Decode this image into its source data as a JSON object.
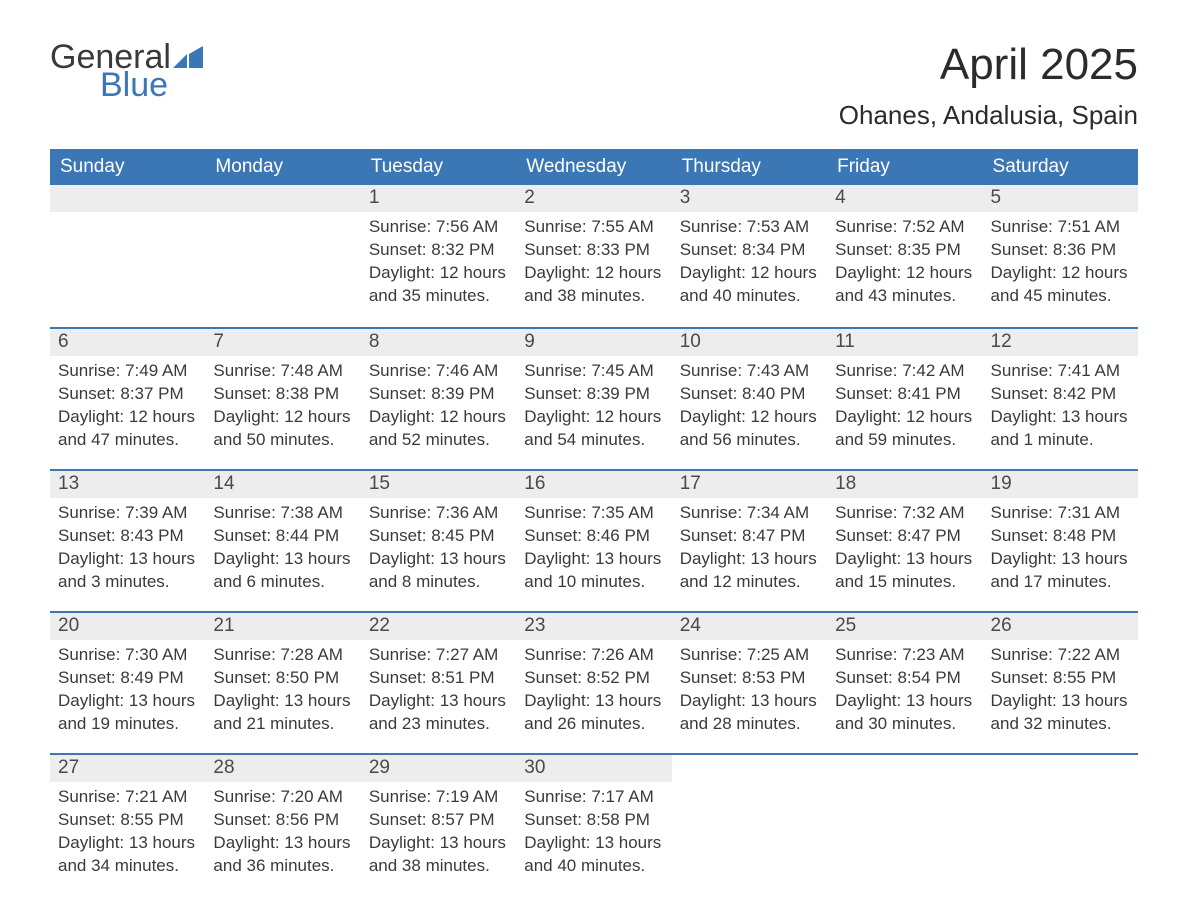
{
  "brand": {
    "word1": "General",
    "word2": "Blue",
    "word1_color": "#3a3a3a",
    "word2_color": "#3b76b5",
    "flag_color": "#3b76b5"
  },
  "title": "April 2025",
  "location": "Ohanes, Andalusia, Spain",
  "colors": {
    "header_bg": "#3b76b5",
    "header_text": "#ffffff",
    "date_bg": "#ededed",
    "row_border": "#3b76b5",
    "body_text": "#3a3a3a",
    "background": "#ffffff"
  },
  "typography": {
    "title_fontsize": 44,
    "location_fontsize": 26,
    "header_fontsize": 19,
    "cell_fontsize": 17,
    "logo_fontsize": 34
  },
  "day_headers": [
    "Sunday",
    "Monday",
    "Tuesday",
    "Wednesday",
    "Thursday",
    "Friday",
    "Saturday"
  ],
  "weeks": [
    [
      null,
      null,
      {
        "date": "1",
        "sunrise": "Sunrise: 7:56 AM",
        "sunset": "Sunset: 8:32 PM",
        "daylight": "Daylight: 12 hours and 35 minutes."
      },
      {
        "date": "2",
        "sunrise": "Sunrise: 7:55 AM",
        "sunset": "Sunset: 8:33 PM",
        "daylight": "Daylight: 12 hours and 38 minutes."
      },
      {
        "date": "3",
        "sunrise": "Sunrise: 7:53 AM",
        "sunset": "Sunset: 8:34 PM",
        "daylight": "Daylight: 12 hours and 40 minutes."
      },
      {
        "date": "4",
        "sunrise": "Sunrise: 7:52 AM",
        "sunset": "Sunset: 8:35 PM",
        "daylight": "Daylight: 12 hours and 43 minutes."
      },
      {
        "date": "5",
        "sunrise": "Sunrise: 7:51 AM",
        "sunset": "Sunset: 8:36 PM",
        "daylight": "Daylight: 12 hours and 45 minutes."
      }
    ],
    [
      {
        "date": "6",
        "sunrise": "Sunrise: 7:49 AM",
        "sunset": "Sunset: 8:37 PM",
        "daylight": "Daylight: 12 hours and 47 minutes."
      },
      {
        "date": "7",
        "sunrise": "Sunrise: 7:48 AM",
        "sunset": "Sunset: 8:38 PM",
        "daylight": "Daylight: 12 hours and 50 minutes."
      },
      {
        "date": "8",
        "sunrise": "Sunrise: 7:46 AM",
        "sunset": "Sunset: 8:39 PM",
        "daylight": "Daylight: 12 hours and 52 minutes."
      },
      {
        "date": "9",
        "sunrise": "Sunrise: 7:45 AM",
        "sunset": "Sunset: 8:39 PM",
        "daylight": "Daylight: 12 hours and 54 minutes."
      },
      {
        "date": "10",
        "sunrise": "Sunrise: 7:43 AM",
        "sunset": "Sunset: 8:40 PM",
        "daylight": "Daylight: 12 hours and 56 minutes."
      },
      {
        "date": "11",
        "sunrise": "Sunrise: 7:42 AM",
        "sunset": "Sunset: 8:41 PM",
        "daylight": "Daylight: 12 hours and 59 minutes."
      },
      {
        "date": "12",
        "sunrise": "Sunrise: 7:41 AM",
        "sunset": "Sunset: 8:42 PM",
        "daylight": "Daylight: 13 hours and 1 minute."
      }
    ],
    [
      {
        "date": "13",
        "sunrise": "Sunrise: 7:39 AM",
        "sunset": "Sunset: 8:43 PM",
        "daylight": "Daylight: 13 hours and 3 minutes."
      },
      {
        "date": "14",
        "sunrise": "Sunrise: 7:38 AM",
        "sunset": "Sunset: 8:44 PM",
        "daylight": "Daylight: 13 hours and 6 minutes."
      },
      {
        "date": "15",
        "sunrise": "Sunrise: 7:36 AM",
        "sunset": "Sunset: 8:45 PM",
        "daylight": "Daylight: 13 hours and 8 minutes."
      },
      {
        "date": "16",
        "sunrise": "Sunrise: 7:35 AM",
        "sunset": "Sunset: 8:46 PM",
        "daylight": "Daylight: 13 hours and 10 minutes."
      },
      {
        "date": "17",
        "sunrise": "Sunrise: 7:34 AM",
        "sunset": "Sunset: 8:47 PM",
        "daylight": "Daylight: 13 hours and 12 minutes."
      },
      {
        "date": "18",
        "sunrise": "Sunrise: 7:32 AM",
        "sunset": "Sunset: 8:47 PM",
        "daylight": "Daylight: 13 hours and 15 minutes."
      },
      {
        "date": "19",
        "sunrise": "Sunrise: 7:31 AM",
        "sunset": "Sunset: 8:48 PM",
        "daylight": "Daylight: 13 hours and 17 minutes."
      }
    ],
    [
      {
        "date": "20",
        "sunrise": "Sunrise: 7:30 AM",
        "sunset": "Sunset: 8:49 PM",
        "daylight": "Daylight: 13 hours and 19 minutes."
      },
      {
        "date": "21",
        "sunrise": "Sunrise: 7:28 AM",
        "sunset": "Sunset: 8:50 PM",
        "daylight": "Daylight: 13 hours and 21 minutes."
      },
      {
        "date": "22",
        "sunrise": "Sunrise: 7:27 AM",
        "sunset": "Sunset: 8:51 PM",
        "daylight": "Daylight: 13 hours and 23 minutes."
      },
      {
        "date": "23",
        "sunrise": "Sunrise: 7:26 AM",
        "sunset": "Sunset: 8:52 PM",
        "daylight": "Daylight: 13 hours and 26 minutes."
      },
      {
        "date": "24",
        "sunrise": "Sunrise: 7:25 AM",
        "sunset": "Sunset: 8:53 PM",
        "daylight": "Daylight: 13 hours and 28 minutes."
      },
      {
        "date": "25",
        "sunrise": "Sunrise: 7:23 AM",
        "sunset": "Sunset: 8:54 PM",
        "daylight": "Daylight: 13 hours and 30 minutes."
      },
      {
        "date": "26",
        "sunrise": "Sunrise: 7:22 AM",
        "sunset": "Sunset: 8:55 PM",
        "daylight": "Daylight: 13 hours and 32 minutes."
      }
    ],
    [
      {
        "date": "27",
        "sunrise": "Sunrise: 7:21 AM",
        "sunset": "Sunset: 8:55 PM",
        "daylight": "Daylight: 13 hours and 34 minutes."
      },
      {
        "date": "28",
        "sunrise": "Sunrise: 7:20 AM",
        "sunset": "Sunset: 8:56 PM",
        "daylight": "Daylight: 13 hours and 36 minutes."
      },
      {
        "date": "29",
        "sunrise": "Sunrise: 7:19 AM",
        "sunset": "Sunset: 8:57 PM",
        "daylight": "Daylight: 13 hours and 38 minutes."
      },
      {
        "date": "30",
        "sunrise": "Sunrise: 7:17 AM",
        "sunset": "Sunset: 8:58 PM",
        "daylight": "Daylight: 13 hours and 40 minutes."
      },
      null,
      null,
      null
    ]
  ]
}
